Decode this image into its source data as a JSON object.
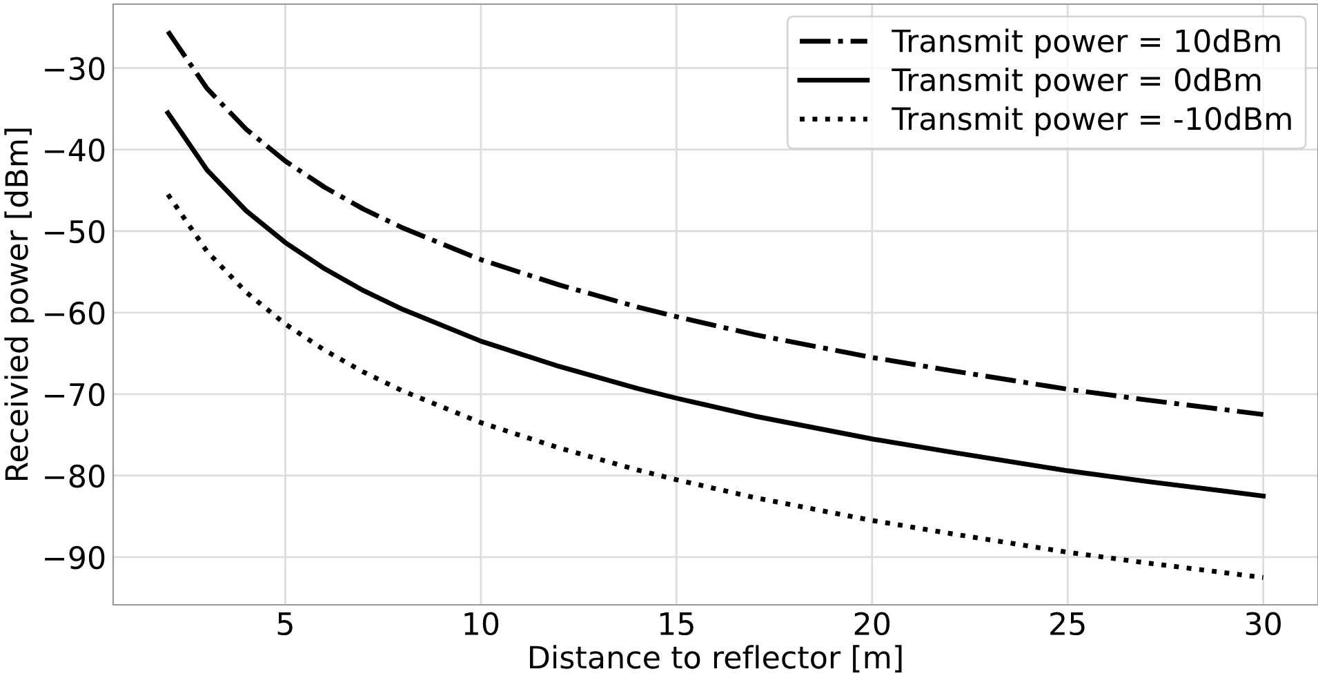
{
  "chart_data": {
    "type": "line",
    "xlabel": "Distance to reflector [m]",
    "ylabel": "Receivied power [dBm]",
    "x": [
      2,
      3,
      4,
      5,
      6,
      7,
      8,
      10,
      12,
      14,
      15,
      17,
      20,
      22,
      25,
      27,
      30
    ],
    "series": [
      {
        "name": "Transmit power = 10dBm",
        "color": "#000000",
        "line_style": "dashdot",
        "values": [
          -25.5,
          -32.5,
          -37.5,
          -41.4,
          -44.6,
          -47.3,
          -49.6,
          -53.5,
          -56.6,
          -59.3,
          -60.5,
          -62.7,
          -65.5,
          -67.1,
          -69.4,
          -70.7,
          -72.5
        ]
      },
      {
        "name": "Transmit power = 0dBm",
        "color": "#000000",
        "line_style": "solid",
        "values": [
          -35.5,
          -42.5,
          -47.5,
          -51.4,
          -54.6,
          -57.3,
          -59.6,
          -63.5,
          -66.6,
          -69.3,
          -70.5,
          -72.7,
          -75.5,
          -77.1,
          -79.4,
          -80.7,
          -82.5
        ]
      },
      {
        "name": "Transmit power = -10dBm",
        "color": "#000000",
        "line_style": "dotted",
        "values": [
          -45.5,
          -52.5,
          -57.5,
          -61.4,
          -64.6,
          -67.3,
          -69.6,
          -73.5,
          -76.6,
          -79.3,
          -80.5,
          -82.7,
          -85.5,
          -87.1,
          -89.4,
          -90.7,
          -92.5
        ]
      }
    ],
    "xlim": [
      0.6,
      31.4
    ],
    "ylim": [
      -95.85,
      -22.15
    ],
    "xticks": [
      5,
      10,
      15,
      20,
      25,
      30
    ],
    "yticks": [
      {
        "value": -30,
        "label": "−30"
      },
      {
        "value": -40,
        "label": "−40"
      },
      {
        "value": -50,
        "label": "−50"
      },
      {
        "value": -60,
        "label": "−60"
      },
      {
        "value": -70,
        "label": "−70"
      },
      {
        "value": -80,
        "label": "−80"
      },
      {
        "value": -90,
        "label": "−90"
      }
    ],
    "grid": true,
    "legend": "top right",
    "marker": "none"
  }
}
